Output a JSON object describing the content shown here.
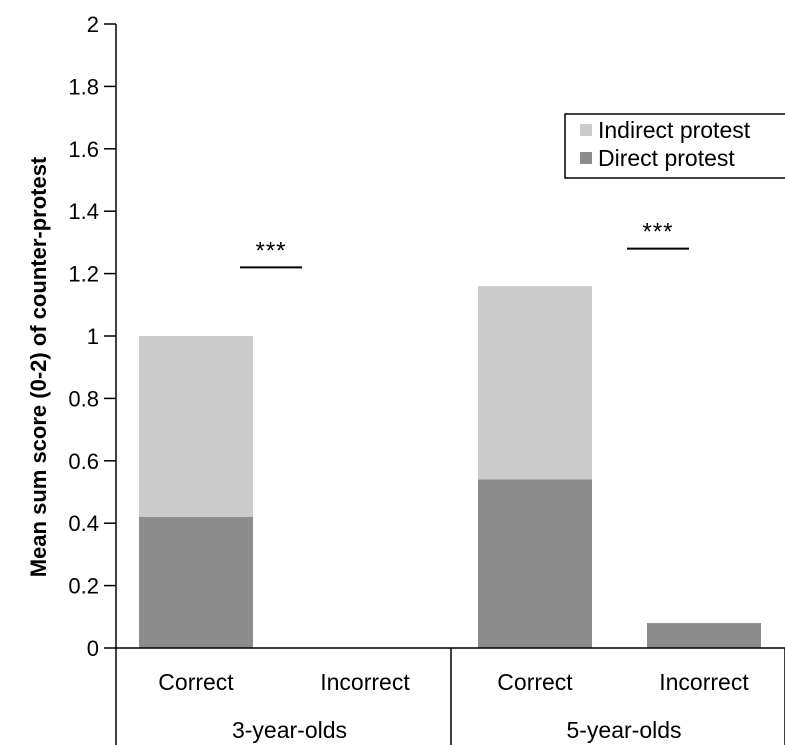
{
  "chart_data": {
    "type": "bar",
    "stacked": true,
    "ylabel": "Mean sum score (0-2) of counter-protest",
    "ylim": [
      0,
      2
    ],
    "yticks": [
      "0",
      "0.2",
      "0.4",
      "0.6",
      "0.8",
      "1",
      "1.2",
      "1.4",
      "1.6",
      "1.8",
      "2"
    ],
    "groups": [
      {
        "label": "3-year-olds",
        "categories": [
          "Correct",
          "Incorrect"
        ]
      },
      {
        "label": "5-year-olds",
        "categories": [
          "Correct",
          "Incorrect"
        ]
      }
    ],
    "categories": [
      "Correct",
      "Incorrect",
      "Correct",
      "Incorrect"
    ],
    "series": [
      {
        "name": "Direct protest",
        "color": "#8c8c8c",
        "values": [
          0.42,
          0,
          0.54,
          0.08
        ]
      },
      {
        "name": "Indirect protest",
        "color": "#cccccc",
        "values": [
          0.58,
          0,
          0.62,
          0
        ]
      }
    ],
    "legend": {
      "position": "top-right",
      "entries": [
        "Indirect protest",
        "Direct protest"
      ]
    },
    "annotations": [
      {
        "text": "***",
        "group": "3-year-olds",
        "y": 1.22
      },
      {
        "text": "***",
        "group": "5-year-olds",
        "y": 1.28
      }
    ],
    "grid": false
  }
}
